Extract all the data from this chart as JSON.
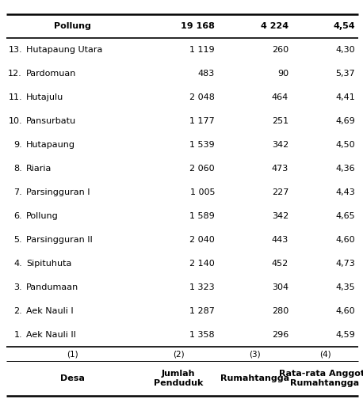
{
  "col_headers": [
    "Desa",
    "Jumlah\nPenduduk",
    "Rumahtangga",
    "Rata-rata Anggota\nRumahtangga"
  ],
  "col_subheaders": [
    "(1)",
    "(2)",
    "(3)",
    "(4)"
  ],
  "rows": [
    [
      "1.",
      "Aek Nauli II",
      "1 358",
      "296",
      "4,59"
    ],
    [
      "2.",
      "Aek Nauli I",
      "1 287",
      "280",
      "4,60"
    ],
    [
      "3.",
      "Pandumaan",
      "1 323",
      "304",
      "4,35"
    ],
    [
      "4.",
      "Sipituhuta",
      "2 140",
      "452",
      "4,73"
    ],
    [
      "5.",
      "Parsingguran II",
      "2 040",
      "443",
      "4,60"
    ],
    [
      "6.",
      "Pollung",
      "1 589",
      "342",
      "4,65"
    ],
    [
      "7.",
      "Parsingguran I",
      "1 005",
      "227",
      "4,43"
    ],
    [
      "8.",
      "Riaria",
      "2 060",
      "473",
      "4,36"
    ],
    [
      "9.",
      "Hutapaung",
      "1 539",
      "342",
      "4,50"
    ],
    [
      "10.",
      "Pansurbatu",
      "1 177",
      "251",
      "4,69"
    ],
    [
      "11.",
      "Hutajulu",
      "2 048",
      "464",
      "4,41"
    ],
    [
      "12.",
      "Pardomuan",
      "483",
      "90",
      "5,37"
    ],
    [
      "13.",
      "Hutapaung Utara",
      "1 119",
      "260",
      "4,30"
    ]
  ],
  "footer": [
    "",
    "Pollung",
    "19 168",
    "4 224",
    "4,54"
  ],
  "bg_color": "#ffffff",
  "line_color": "#000000",
  "text_color": "#000000",
  "header_fontsize": 8.0,
  "body_fontsize": 8.0,
  "footer_fontsize": 8.0,
  "fig_width": 4.58,
  "fig_height": 5.04,
  "dpi": 100
}
